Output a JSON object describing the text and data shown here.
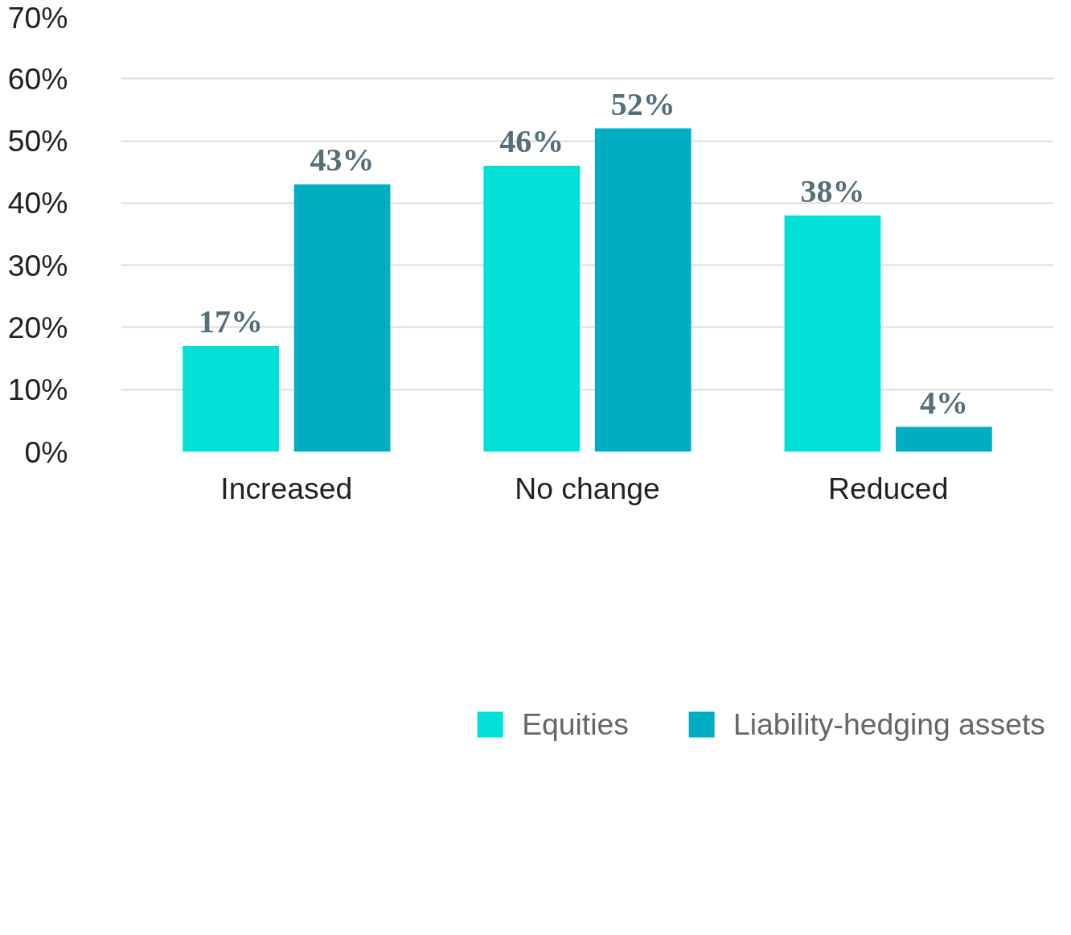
{
  "chart_data": {
    "type": "bar",
    "categories": [
      "Increased",
      "No change",
      "Reduced"
    ],
    "series": [
      {
        "name": "Equities",
        "color": "#00e0d6",
        "values": [
          17,
          46,
          38
        ],
        "value_labels": [
          "17%",
          "46%",
          "38%"
        ]
      },
      {
        "name": "Liability-hedging assets",
        "color": "#00aec4",
        "values": [
          43,
          52,
          4
        ],
        "value_labels": [
          "43%",
          "52%",
          "4%"
        ]
      }
    ],
    "ylim": [
      0,
      70
    ],
    "yticks": [
      {
        "value": 0,
        "label": "0%"
      },
      {
        "value": 10,
        "label": "10%"
      },
      {
        "value": 20,
        "label": "20%"
      },
      {
        "value": 30,
        "label": "30%"
      },
      {
        "value": 40,
        "label": "40%"
      },
      {
        "value": 50,
        "label": "50%"
      },
      {
        "value": 60,
        "label": "60%"
      },
      {
        "value": 70,
        "label": "70%"
      }
    ],
    "grid": "y",
    "legend": "bottom"
  }
}
